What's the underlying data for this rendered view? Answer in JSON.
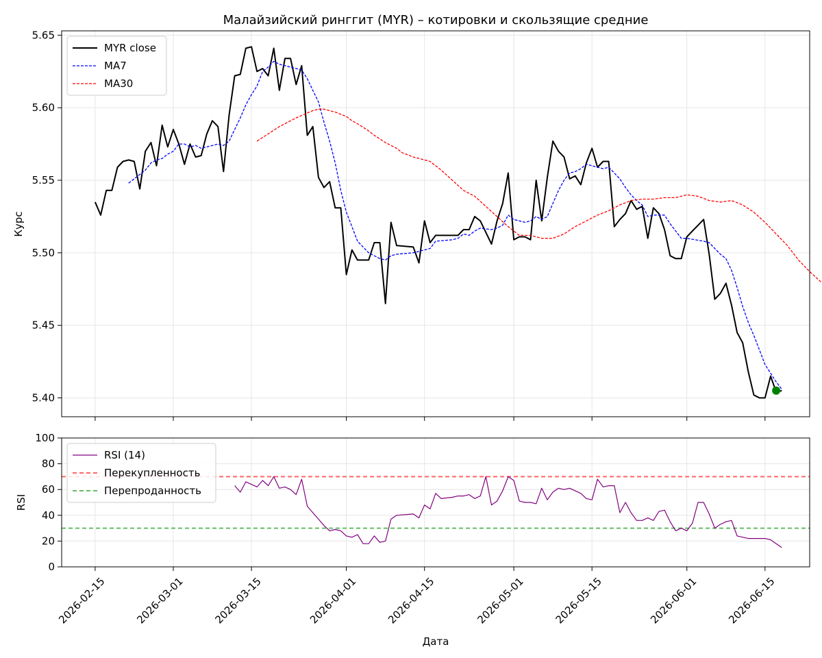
{
  "chart_data": {
    "type": "line",
    "title": "Малайзийский ринггит (MYR) – котировки и скользящие средние",
    "xlabel": "Дата",
    "x_ticks": [
      "2026-02-15",
      "2026-03-01",
      "2026-03-15",
      "2026-04-01",
      "2026-04-15",
      "2026-05-01",
      "2026-05-15",
      "2026-06-01",
      "2026-06-15"
    ],
    "x_range": [
      "2026-02-09",
      "2026-06-23"
    ],
    "grid": true,
    "price_panel": {
      "ylabel": "Курс",
      "ylim": [
        5.387,
        5.653
      ],
      "y_ticks": [
        "5.40",
        "5.45",
        "5.50",
        "5.55",
        "5.60",
        "5.65"
      ],
      "legend_position": "top-left",
      "series": [
        {
          "name": "MYR close",
          "color": "#000000",
          "style": "solid",
          "dates": [],
          "values": []
        },
        {
          "name": "MA7",
          "color": "#0000ff",
          "style": "dashed",
          "dates": [],
          "values": []
        },
        {
          "name": "MA30",
          "color": "#ff0000",
          "style": "dashed",
          "dates": [],
          "values": []
        }
      ],
      "last_point": {
        "date": "2026-06-17",
        "value": 5.405,
        "color": "#008000"
      }
    },
    "rsi_panel": {
      "ylabel": "RSI",
      "ylim": [
        0,
        100
      ],
      "y_ticks": [
        "0",
        "20",
        "40",
        "60",
        "80",
        "100"
      ],
      "legend_position": "top-left",
      "series": [
        {
          "name": "RSI (14)",
          "color": "#800080",
          "style": "solid",
          "dates": [],
          "values": []
        }
      ],
      "reference_lines": [
        {
          "name": "Перекупленность",
          "value": 70,
          "color": "#ff6666",
          "style": "dashed"
        },
        {
          "name": "Перепроданность",
          "value": 30,
          "color": "#66bb66",
          "style": "dashed"
        }
      ]
    }
  }
}
